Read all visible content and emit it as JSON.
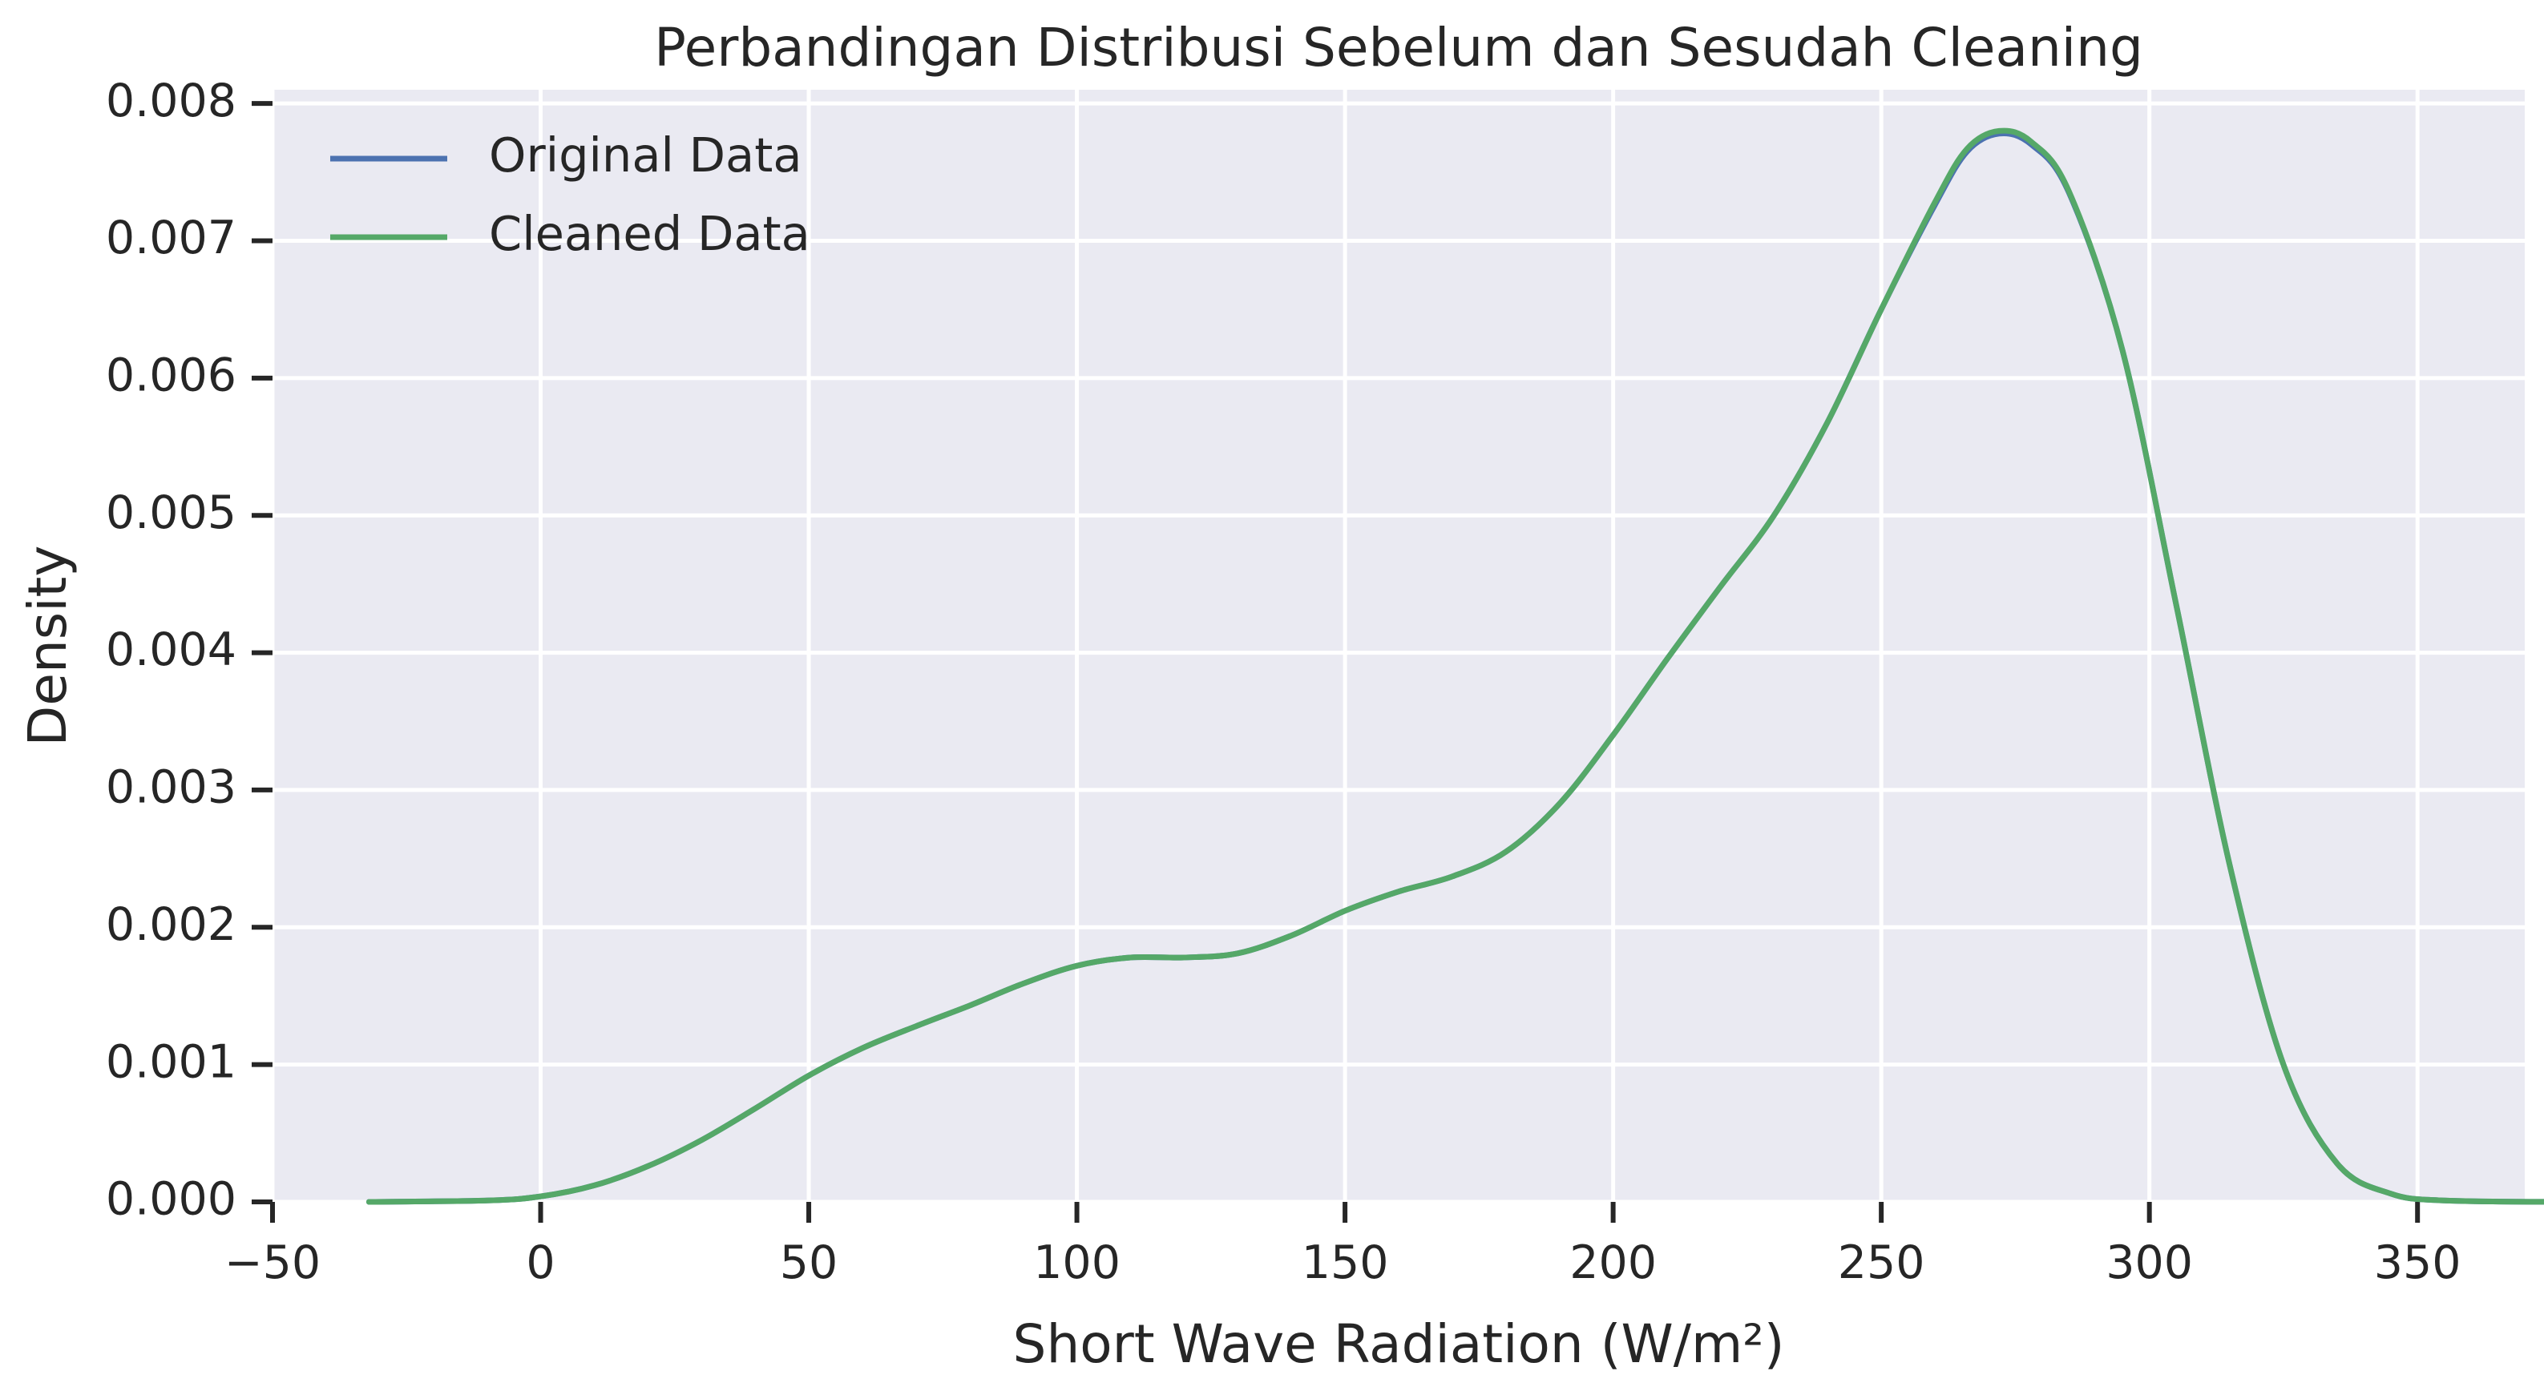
{
  "chart_data": {
    "type": "line",
    "title": "Perbandingan Distribusi Sebelum dan Sesudah Cleaning",
    "xlabel": "Short Wave Radiation (W/m²)",
    "ylabel": "Density",
    "xlim": [
      -50,
      370
    ],
    "ylim": [
      0,
      0.0081
    ],
    "grid": true,
    "legend_position": "top-left",
    "x_ticks": [
      {
        "value": -50,
        "label": "−50"
      },
      {
        "value": 0,
        "label": "0"
      },
      {
        "value": 50,
        "label": "50"
      },
      {
        "value": 100,
        "label": "100"
      },
      {
        "value": 150,
        "label": "150"
      },
      {
        "value": 200,
        "label": "200"
      },
      {
        "value": 250,
        "label": "250"
      },
      {
        "value": 300,
        "label": "300"
      },
      {
        "value": 350,
        "label": "350"
      }
    ],
    "y_ticks": [
      {
        "value": 0.0,
        "label": "0.000"
      },
      {
        "value": 0.001,
        "label": "0.001"
      },
      {
        "value": 0.002,
        "label": "0.002"
      },
      {
        "value": 0.003,
        "label": "0.003"
      },
      {
        "value": 0.004,
        "label": "0.004"
      },
      {
        "value": 0.005,
        "label": "0.005"
      },
      {
        "value": 0.006,
        "label": "0.006"
      },
      {
        "value": 0.007,
        "label": "0.007"
      },
      {
        "value": 0.008,
        "label": "0.008"
      }
    ],
    "series": [
      {
        "name": "Original Data",
        "color": "#4c72b0",
        "points": [
          [
            -32,
            0.0
          ],
          [
            -10,
            1e-05
          ],
          [
            0,
            4e-05
          ],
          [
            10,
            0.00012
          ],
          [
            20,
            0.00026
          ],
          [
            30,
            0.00045
          ],
          [
            40,
            0.00068
          ],
          [
            50,
            0.00092
          ],
          [
            60,
            0.00112
          ],
          [
            70,
            0.00128
          ],
          [
            80,
            0.00143
          ],
          [
            90,
            0.00159
          ],
          [
            100,
            0.00172
          ],
          [
            110,
            0.00178
          ],
          [
            120,
            0.00178
          ],
          [
            130,
            0.00181
          ],
          [
            140,
            0.00194
          ],
          [
            150,
            0.00212
          ],
          [
            160,
            0.00226
          ],
          [
            170,
            0.00237
          ],
          [
            180,
            0.00255
          ],
          [
            190,
            0.0029
          ],
          [
            200,
            0.0034
          ],
          [
            210,
            0.00395
          ],
          [
            220,
            0.00448
          ],
          [
            230,
            0.005
          ],
          [
            240,
            0.00568
          ],
          [
            250,
            0.0065
          ],
          [
            260,
            0.00726
          ],
          [
            266,
            0.00765
          ],
          [
            272,
            0.00778
          ],
          [
            278,
            0.0077
          ],
          [
            285,
            0.00735
          ],
          [
            295,
            0.0062
          ],
          [
            305,
            0.00435
          ],
          [
            315,
            0.00245
          ],
          [
            325,
            0.001
          ],
          [
            335,
            0.00028
          ],
          [
            345,
            6e-05
          ],
          [
            355,
            1e-05
          ],
          [
            375,
            0.0
          ]
        ]
      },
      {
        "name": "Cleaned Data",
        "color": "#55a868",
        "points": [
          [
            -32,
            0.0
          ],
          [
            -10,
            1e-05
          ],
          [
            0,
            4e-05
          ],
          [
            10,
            0.00012
          ],
          [
            20,
            0.00026
          ],
          [
            30,
            0.00045
          ],
          [
            40,
            0.00068
          ],
          [
            50,
            0.00092
          ],
          [
            60,
            0.00112
          ],
          [
            70,
            0.00128
          ],
          [
            80,
            0.00143
          ],
          [
            90,
            0.00159
          ],
          [
            100,
            0.00172
          ],
          [
            110,
            0.00178
          ],
          [
            120,
            0.00178
          ],
          [
            130,
            0.00181
          ],
          [
            140,
            0.00194
          ],
          [
            150,
            0.00212
          ],
          [
            160,
            0.00226
          ],
          [
            170,
            0.00237
          ],
          [
            180,
            0.00255
          ],
          [
            190,
            0.0029
          ],
          [
            200,
            0.0034
          ],
          [
            210,
            0.00395
          ],
          [
            220,
            0.00448
          ],
          [
            230,
            0.005
          ],
          [
            240,
            0.00568
          ],
          [
            250,
            0.0065
          ],
          [
            260,
            0.00728
          ],
          [
            266,
            0.00767
          ],
          [
            272,
            0.0078
          ],
          [
            278,
            0.00772
          ],
          [
            285,
            0.00736
          ],
          [
            295,
            0.0062
          ],
          [
            305,
            0.00435
          ],
          [
            315,
            0.00245
          ],
          [
            325,
            0.001
          ],
          [
            335,
            0.00028
          ],
          [
            345,
            6e-05
          ],
          [
            355,
            1e-05
          ],
          [
            375,
            0.0
          ]
        ]
      }
    ]
  }
}
